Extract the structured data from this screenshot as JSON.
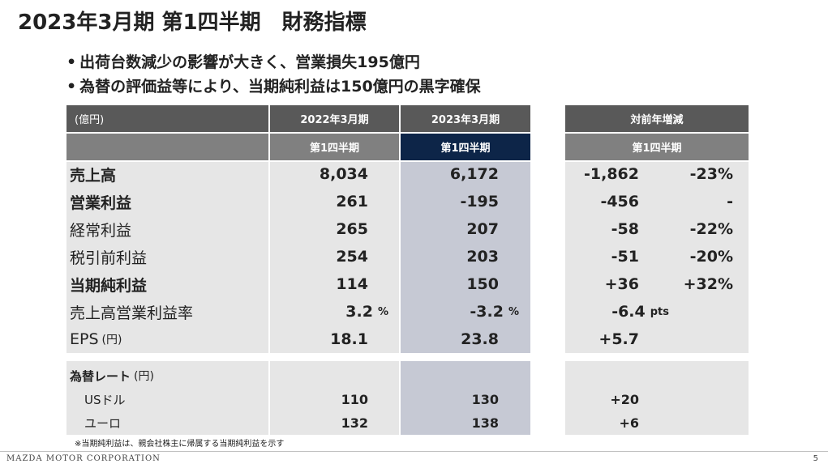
{
  "title": "2023年3月期 第1四半期　財務指標",
  "bullets": [
    "出荷台数減少の影響が大きく、営業損失195億円",
    "為替の評価益等により、当期純利益は150億円の黒字確保"
  ],
  "table": {
    "unit_label": "(億円)",
    "col_fy2022": "2022年3月期",
    "col_fy2023": "2023年3月期",
    "col_yoy": "対前年増減",
    "quarter_label": "第1四半期",
    "rows": [
      {
        "label": "売上高",
        "prev": "8,034",
        "curr": "6,172",
        "diff": "-1,862",
        "pct": "-23%"
      },
      {
        "label": "営業利益",
        "prev": "261",
        "curr": "-195",
        "diff": "-456",
        "pct": "-"
      },
      {
        "label": "経常利益",
        "prev": "265",
        "curr": "207",
        "diff": "-58",
        "pct": "-22%"
      },
      {
        "label": "税引前利益",
        "prev": "254",
        "curr": "203",
        "diff": "-51",
        "pct": "-20%"
      },
      {
        "label": "当期純利益",
        "prev": "114",
        "curr": "150",
        "diff": "+36",
        "pct": "+32%"
      },
      {
        "label": "売上高営業利益率",
        "prev": "3.2",
        "prev_unit": "%",
        "curr": "-3.2",
        "curr_unit": "%",
        "diff": "-6.4",
        "diff_unit": "pts"
      },
      {
        "label": "EPS",
        "label_unit": "(円)",
        "prev": "18.1",
        "curr": "23.8",
        "diff": "+5.7"
      }
    ],
    "fx": {
      "title": "為替レート",
      "title_unit": "(円)",
      "rows": [
        {
          "label": "USドル",
          "prev": "110",
          "curr": "130",
          "diff": "+20"
        },
        {
          "label": "ユーロ",
          "prev": "132",
          "curr": "138",
          "diff": "+6"
        }
      ]
    }
  },
  "footnote": "※当期純利益は、親会社株主に帰属する当期純利益を示す",
  "company": "MAZDA MOTOR CORPORATION",
  "page_number": "5",
  "colors": {
    "header_dark": "#595959",
    "header_mid": "#808080",
    "header_navy": "#0d2548",
    "row_bg": "#e6e6e6",
    "highlight_col": "#c6c9d4"
  }
}
